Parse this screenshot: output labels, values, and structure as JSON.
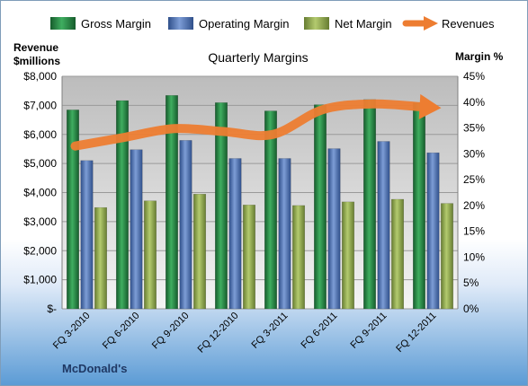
{
  "chart_data": {
    "type": "bar",
    "title": "Quarterly Margins",
    "ylabel_left_line1": "Revenue",
    "ylabel_left_line2": "$millions",
    "ylabel_right": "Margin %",
    "footer": "McDonald's",
    "categories": [
      "FQ 3-2010",
      "FQ 6-2010",
      "FQ 9-2010",
      "FQ 12-2010",
      "FQ 3-2011",
      "FQ 6-2011",
      "FQ 9-2011",
      "FQ 12-2011"
    ],
    "series": [
      {
        "name": "Gross Margin",
        "axis": "right",
        "color": "#1e7b3c",
        "values": [
          38.5,
          40.3,
          41.3,
          39.9,
          38.3,
          39.5,
          40.5,
          39.9
        ]
      },
      {
        "name": "Operating Margin",
        "axis": "right",
        "color": "#4f73b6",
        "values": [
          28.7,
          30.8,
          32.6,
          29.1,
          29.1,
          31.0,
          32.4,
          30.2
        ]
      },
      {
        "name": "Net Margin",
        "axis": "right",
        "color": "#8faa4c",
        "values": [
          19.6,
          20.9,
          22.2,
          20.1,
          20.0,
          20.7,
          21.2,
          20.4
        ]
      },
      {
        "name": "Revenues",
        "axis": "left",
        "type": "line",
        "color": "#ed7d31",
        "values": [
          5600,
          5900,
          6200,
          6100,
          6000,
          6850,
          7050,
          6950
        ]
      }
    ],
    "yleft": {
      "min": 0,
      "max": 8000,
      "ticks": [
        "$-",
        "$1,000",
        "$2,000",
        "$3,000",
        "$4,000",
        "$5,000",
        "$6,000",
        "$7,000",
        "$8,000"
      ]
    },
    "yright": {
      "min": 0,
      "max": 45,
      "ticks": [
        "0%",
        "5%",
        "10%",
        "15%",
        "20%",
        "25%",
        "30%",
        "35%",
        "40%",
        "45%"
      ]
    },
    "grid": true,
    "legend_position": "top"
  }
}
